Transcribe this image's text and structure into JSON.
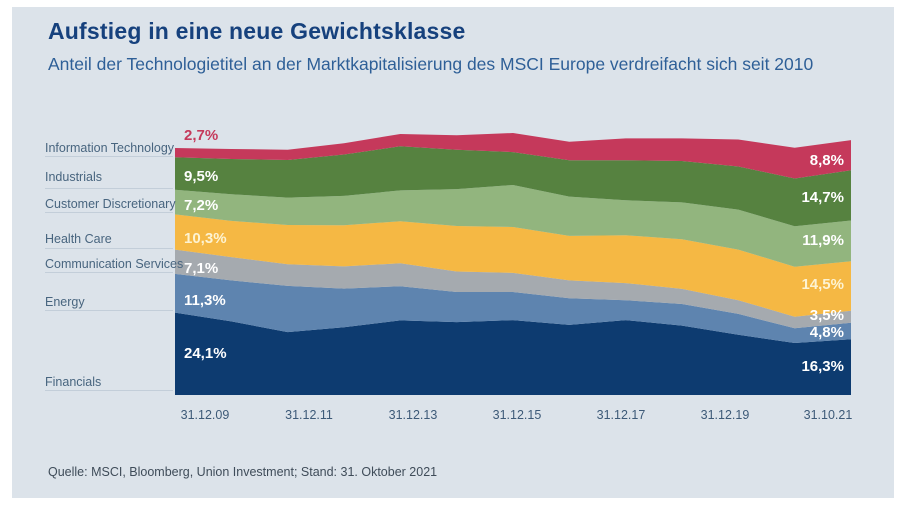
{
  "header": {
    "title": "Aufstieg in eine neue Gewichtsklasse",
    "subtitle": "Anteil der Technologietitel an der Marktkapitalisierung des MSCI Europe verdreifacht sich seit 2010"
  },
  "footer": {
    "source": "Quelle: MSCI, Bloomberg, Union Investment; Stand: 31. Oktober 2021"
  },
  "colors": {
    "panel_background": "#dce3ea",
    "title_text": "#16417d",
    "subtitle_text": "#2e5f97",
    "legend_text": "#48657f",
    "tick_text": "#3d5a78",
    "source_text": "#3f4c59",
    "rule_line": "#c3ced9"
  },
  "chart_data": {
    "type": "area",
    "stacked": true,
    "y_axis_visible": false,
    "unit": "%",
    "x_tick_labels": [
      "31.12.09",
      "31.12.11",
      "31.12.13",
      "31.12.15",
      "31.12.17",
      "31.12.19",
      "31.10.21"
    ],
    "x_samples": [
      "2009",
      "2010",
      "2011",
      "2012",
      "2013",
      "2014",
      "2015",
      "2016",
      "2017",
      "2018",
      "2019",
      "2020",
      "2021"
    ],
    "series": [
      {
        "name": "Financials",
        "color": "#0d3b70",
        "value_label_color": "#ffffff",
        "first_value_label": "24,1%",
        "last_value_label": "16,3%",
        "values": [
          24.1,
          21.5,
          18.4,
          19.8,
          21.8,
          21.3,
          21.9,
          20.5,
          21.9,
          20.3,
          17.6,
          15.2,
          16.3
        ]
      },
      {
        "name": "Energy",
        "color": "#5e84af",
        "value_label_color": "#ffffff",
        "first_value_label": "11,3%",
        "last_value_label": "4,8%",
        "values": [
          11.3,
          12.0,
          13.5,
          11.3,
          10.0,
          8.8,
          8.2,
          7.8,
          5.8,
          6.3,
          6.1,
          4.3,
          4.8
        ]
      },
      {
        "name": "Communication Services",
        "color": "#a5aaaf",
        "value_label_color": "#ffffff",
        "first_value_label": "7,1%",
        "last_value_label": "3,5%",
        "values": [
          7.1,
          6.8,
          6.3,
          6.5,
          6.7,
          6.0,
          5.6,
          5.2,
          5.0,
          4.4,
          4.0,
          3.4,
          3.5
        ]
      },
      {
        "name": "Health Care",
        "color": "#f5b844",
        "value_label_color": "#fdf3d2",
        "first_value_label": "10,3%",
        "last_value_label": "14,5%",
        "values": [
          10.3,
          10.6,
          11.5,
          12.0,
          12.3,
          13.3,
          13.4,
          13.0,
          14.0,
          14.5,
          14.8,
          14.6,
          14.5
        ]
      },
      {
        "name": "Customer Discretionary",
        "color": "#92b57e",
        "value_label_color": "#ffffff",
        "first_value_label": "7,2%",
        "last_value_label": "11,9%",
        "values": [
          7.2,
          7.8,
          8.0,
          8.6,
          9.0,
          10.8,
          12.3,
          11.5,
          10.2,
          10.8,
          11.7,
          11.8,
          11.9
        ]
      },
      {
        "name": "Industrials",
        "color": "#568240",
        "value_label_color": "#ffffff",
        "first_value_label": "9,5%",
        "last_value_label": "14,7%",
        "values": [
          9.5,
          10.3,
          11.0,
          12.1,
          12.9,
          11.5,
          9.6,
          10.6,
          11.7,
          12.1,
          12.6,
          14.0,
          14.7
        ]
      },
      {
        "name": "Information Technology",
        "color": "#c5395b",
        "value_label_color": "#ffffff",
        "first_label_outside": true,
        "first_label_color": "#c5395b",
        "first_value_label": "2,7%",
        "last_value_label": "8,8%",
        "values": [
          2.7,
          2.9,
          3.0,
          3.3,
          3.6,
          4.2,
          5.6,
          5.4,
          6.4,
          6.6,
          7.9,
          9.0,
          8.8
        ]
      }
    ]
  }
}
